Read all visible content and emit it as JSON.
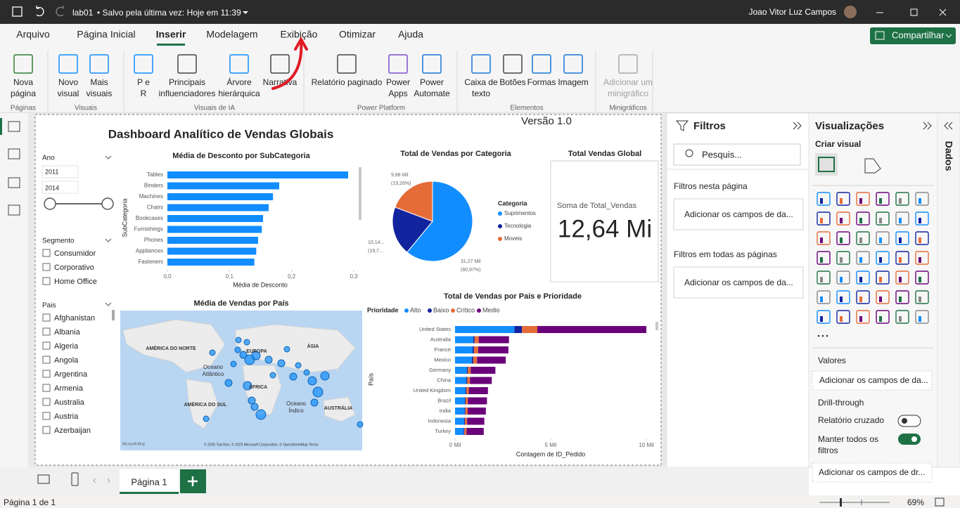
{
  "title_bar": {
    "file": "lab01",
    "saved": "• Salvo pela última vez: Hoje em 11:39",
    "user": "Joao Vitor Luz Campos"
  },
  "ribbon": {
    "tabs": [
      "Arquivo",
      "Página Inicial",
      "Inserir",
      "Modelagem",
      "Exibição",
      "Otimizar",
      "Ajuda"
    ],
    "share": "Compartilhar",
    "buttons": [
      [
        "Nova",
        "página"
      ],
      [
        "Novo",
        "visual"
      ],
      [
        "Mais",
        "visuais"
      ],
      [
        "P e",
        "R"
      ],
      [
        "Principais",
        "influenciadores"
      ],
      [
        "Árvore",
        "hierárquica"
      ],
      [
        "Narrativa"
      ],
      [
        "Relatório paginado"
      ],
      [
        "Power",
        "Apps"
      ],
      [
        "Power",
        "Automate"
      ],
      [
        "Caixa de",
        "texto"
      ],
      [
        "Botões"
      ],
      [
        "Formas"
      ],
      [
        "Imagem"
      ],
      [
        "Adicionar um",
        "minigráfico"
      ]
    ],
    "groups": [
      "Páginas",
      "Visuais",
      "Visuais de IA",
      "Power Platform",
      "Elementos",
      "Minigráficos"
    ]
  },
  "canvas": {
    "title": "Dashboard Analítico de Vendas Globais",
    "version": "Versão 1.0"
  },
  "slicers": {
    "year": {
      "title": "Ano",
      "from": "2011",
      "to": "2014"
    },
    "segment": {
      "title": "Segmento",
      "items": [
        "Consumidor",
        "Corporativo",
        "Home Office"
      ]
    },
    "country": {
      "title": "Pais",
      "items": [
        "Afghanistan",
        "Albania",
        "Algeria",
        "Angola",
        "Argentina",
        "Armenia",
        "Australia",
        "Austria",
        "Azerbaijan"
      ]
    }
  },
  "map": {
    "title": "Média de Vendas por País",
    "labels": [
      "AMÉRICA DO NORTE",
      "EUROPA",
      "ÁSIA",
      "Oceano",
      "Atlântico",
      "ÁFRICA",
      "AMÉRICA DO SUL",
      "Oceano",
      "Índico",
      "AUSTRÁLIA"
    ],
    "logo": "Microsoft Bing",
    "attribution": "© 2025 TomTom, © 2025 Microsoft Corporation, © OpenStreetMap  Terms"
  },
  "card": {
    "title": "Total Vendas Global",
    "label": "Soma de Total_Vendas",
    "value": "12,64 Mi"
  },
  "chart_data": [
    {
      "type": "hbar",
      "title": "Média de Desconto por SubCategoria",
      "x_label": "Média de Desconto",
      "y_label": "SubCategoria",
      "categories": [
        "Tables",
        "Binders",
        "Machines",
        "Chairs",
        "Bookcases",
        "Furnishings",
        "Phones",
        "Appliances",
        "Fasteners"
      ],
      "values": [
        0.291,
        0.18,
        0.17,
        0.163,
        0.154,
        0.152,
        0.146,
        0.143,
        0.14
      ],
      "color": "#118dff",
      "xlim": [
        0,
        0.3
      ],
      "xticks": [
        {
          "value": 0,
          "label": "0,0"
        },
        {
          "value": 0.1,
          "label": "0,1"
        },
        {
          "value": 0.2,
          "label": "0,2"
        },
        {
          "value": 0.3,
          "label": "0,3"
        }
      ]
    },
    {
      "type": "pie",
      "title": "Total de Vendas por Categoria",
      "legend_title": "Categoria",
      "categories": [
        "Suprimentos",
        "Tecnologia",
        "Moveis"
      ],
      "values": [
        31.27,
        10.14,
        9.88
      ],
      "value_labels": [
        [
          "31,27 Mil",
          "(60,97%)"
        ],
        [
          "10,14...",
          "(19,7..."
        ],
        [
          "9,88 Mil",
          "(19,26%)"
        ]
      ],
      "colors": [
        "#118dff",
        "#12239e",
        "#e66c37"
      ]
    },
    {
      "type": "stacked-hbar",
      "title": "Total de Vendas por Pais e Prioridade",
      "legend_title": "Prioridade",
      "x_label": "Contagem de ID_Pedido",
      "y_label": "País",
      "categories": [
        "United States",
        "Australia",
        "France",
        "Mexico",
        "Germany",
        "China",
        "United Kingdom",
        "Brazil",
        "India",
        "Indonesia",
        "Turkey"
      ],
      "series": [
        {
          "name": "Alto",
          "color": "#118dff",
          "values": [
            3.1,
            0.95,
            0.92,
            0.88,
            0.62,
            0.59,
            0.55,
            0.51,
            0.5,
            0.48,
            0.45
          ]
        },
        {
          "name": "Baixo",
          "color": "#12239e",
          "values": [
            0.4,
            0.07,
            0.07,
            0.07,
            0.05,
            0.05,
            0.04,
            0.04,
            0.04,
            0.04,
            0.04
          ]
        },
        {
          "name": "Crítico",
          "color": "#e66c37",
          "values": [
            0.8,
            0.22,
            0.22,
            0.2,
            0.15,
            0.14,
            0.13,
            0.12,
            0.12,
            0.11,
            0.11
          ]
        },
        {
          "name": "Medio",
          "color": "#6b007b",
          "values": [
            5.7,
            1.58,
            1.58,
            1.5,
            1.29,
            1.14,
            1.0,
            1.0,
            0.95,
            0.9,
            0.9
          ]
        }
      ],
      "xlim": [
        0,
        10.3
      ],
      "xticks": [
        {
          "value": 0,
          "label": "0 Mil"
        },
        {
          "value": 5,
          "label": "5 Mil"
        },
        {
          "value": 10,
          "label": "10 Mil"
        }
      ]
    }
  ],
  "filters": {
    "title": "Filtros",
    "search": "Pesquis...",
    "this_page": "Filtros nesta página",
    "this_page_well": "Adicionar os campos de da...",
    "all_pages": "Filtros em todas as páginas",
    "all_pages_well": "Adicionar os campos de da..."
  },
  "visualizations": {
    "title": "Visualizações",
    "build": "Criar visual",
    "values": "Valores",
    "values_well": "Adicionar os campos de da...",
    "drill": "Drill-through",
    "cross": "Relatório cruzado",
    "keep": "Manter todos os",
    "keep2": "filtros",
    "drill_well": "Adicionar os campos de dr..."
  },
  "data_pane": "Dados",
  "pages": {
    "tab": "Página 1"
  },
  "status": {
    "page": "Página 1 de 1",
    "zoom": "69%"
  }
}
